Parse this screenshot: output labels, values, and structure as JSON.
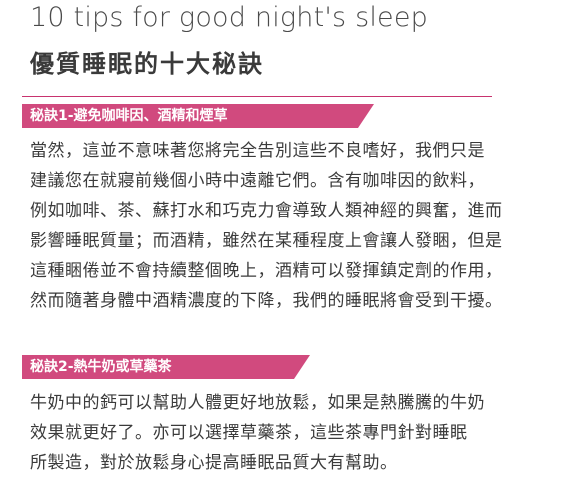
{
  "title_en": "10 tips for good night's sleep",
  "title_zh": "優質睡眠的十大秘訣",
  "sections": [
    {
      "heading": "秘訣1-避免咖啡因、酒精和煙草",
      "lines": [
        "當然，這並不意味著您將完全告別這些不良嗜好，我們只是",
        "建議您在就寢前幾個小時中遠離它們。含有咖啡因的飲料，",
        "例如咖啡、茶、蘇打水和巧克力會導致人類神經的興奮，進而",
        "影響睡眠質量；而酒精，雖然在某種程度上會讓人發睏，但是",
        "這種睏倦並不會持續整個晚上，酒精可以發揮鎮定劑的作用，",
        "然而隨著身體中酒精濃度的下降，我們的睡眠將會受到干擾。"
      ]
    },
    {
      "heading": "秘訣2-熱牛奶或草藥茶",
      "lines": [
        "牛奶中的鈣可以幫助人體更好地放鬆，如果是熱騰騰的牛奶",
        "效果就更好了。亦可以選擇草藥茶，這些茶專門針對睡眠",
        "所製造，對於放鬆身心提高睡眠品質大有幫助。"
      ]
    }
  ],
  "colors": {
    "accent": "#d14a7e",
    "text": "#3b3b3b"
  }
}
